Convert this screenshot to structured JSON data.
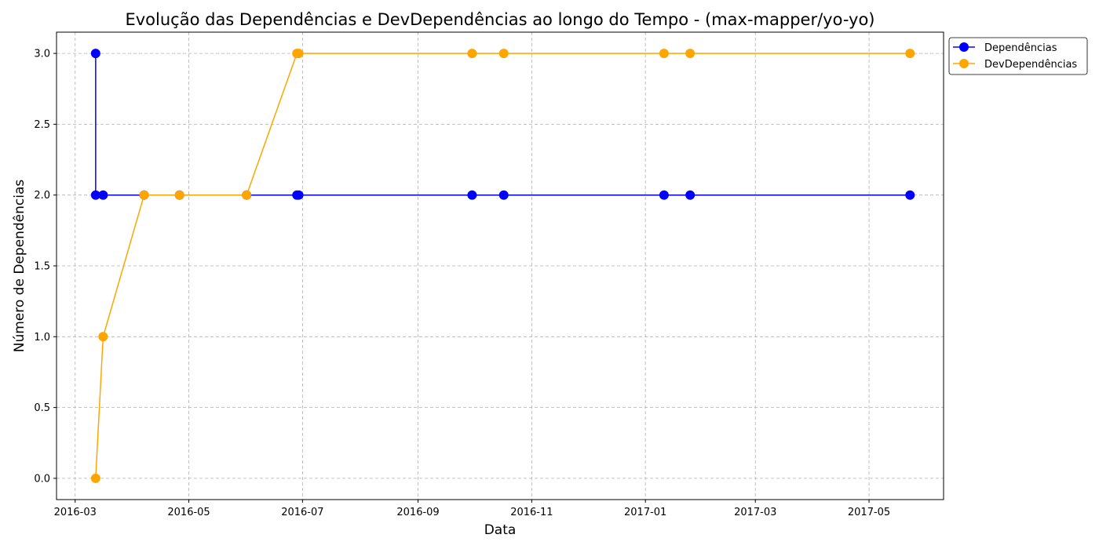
{
  "chart_data": {
    "type": "line",
    "title": "Evolução das Dependências e DevDependências ao longo do Tempo - (max-mapper/yo-yo)",
    "xlabel": "Data",
    "ylabel": "Número de Dependências",
    "x_ticks": [
      "2016-03",
      "2016-05",
      "2016-07",
      "2016-09",
      "2016-11",
      "2017-01",
      "2017-03",
      "2017-05"
    ],
    "y_ticks": [
      "0.0",
      "0.5",
      "1.0",
      "1.5",
      "2.0",
      "2.5",
      "3.0"
    ],
    "xlim": [
      "2016-02-20",
      "2017-06-10"
    ],
    "ylim": [
      -0.15,
      3.15
    ],
    "grid": true,
    "legend_position": "outside top-right",
    "series": [
      {
        "name": "Dependências",
        "color": "#0000ff",
        "points": [
          {
            "x": "2016-03-12",
            "y": 3
          },
          {
            "x": "2016-03-12",
            "y": 2
          },
          {
            "x": "2016-03-16",
            "y": 2
          },
          {
            "x": "2016-04-07",
            "y": 2
          },
          {
            "x": "2016-04-26",
            "y": 2
          },
          {
            "x": "2016-06-01",
            "y": 2
          },
          {
            "x": "2016-06-28",
            "y": 2
          },
          {
            "x": "2016-06-29",
            "y": 2
          },
          {
            "x": "2016-09-30",
            "y": 2
          },
          {
            "x": "2016-10-17",
            "y": 2
          },
          {
            "x": "2017-01-11",
            "y": 2
          },
          {
            "x": "2017-01-25",
            "y": 2
          },
          {
            "x": "2017-05-23",
            "y": 2
          }
        ]
      },
      {
        "name": "DevDependências",
        "color": "#ffa500",
        "points": [
          {
            "x": "2016-03-12",
            "y": 0
          },
          {
            "x": "2016-03-16",
            "y": 1
          },
          {
            "x": "2016-04-07",
            "y": 2
          },
          {
            "x": "2016-04-26",
            "y": 2
          },
          {
            "x": "2016-06-01",
            "y": 2
          },
          {
            "x": "2016-06-28",
            "y": 3
          },
          {
            "x": "2016-06-29",
            "y": 3
          },
          {
            "x": "2016-09-30",
            "y": 3
          },
          {
            "x": "2016-10-17",
            "y": 3
          },
          {
            "x": "2017-01-11",
            "y": 3
          },
          {
            "x": "2017-01-25",
            "y": 3
          },
          {
            "x": "2017-05-23",
            "y": 3
          }
        ]
      }
    ]
  }
}
